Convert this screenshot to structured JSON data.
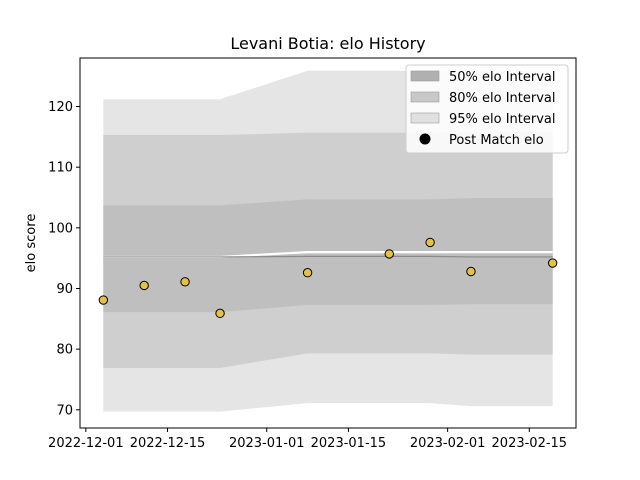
{
  "chart_data": {
    "type": "line",
    "title": "Levani Botia: elo History",
    "xlabel": "",
    "ylabel": "elo score",
    "xlim": [
      "2022-11-30",
      "2023-02-23"
    ],
    "ylim": [
      67,
      128
    ],
    "x_ticks": [
      "2022-12-01",
      "2022-12-15",
      "2023-01-01",
      "2023-01-15",
      "2023-02-01",
      "2023-02-15"
    ],
    "y_ticks": [
      70,
      80,
      90,
      100,
      110,
      120
    ],
    "dates": [
      "2022-12-04",
      "2022-12-11",
      "2022-12-18",
      "2022-12-24",
      "2023-01-08",
      "2023-01-22",
      "2023-01-29",
      "2023-02-05",
      "2023-02-19"
    ],
    "mean": [
      95.2,
      95.2,
      95.2,
      95.2,
      96.0,
      96.0,
      96.0,
      96.0,
      96.0
    ],
    "mean_secondary": [
      95.2,
      95.2,
      95.2,
      95.2,
      95.3,
      95.3,
      95.3,
      95.2,
      95.2
    ],
    "series": [
      {
        "name": "95% elo Interval",
        "color": "#e5e5e5",
        "lower": [
          69.7,
          69.7,
          69.7,
          69.7,
          71.1,
          71.1,
          71.1,
          70.6,
          70.6
        ],
        "upper": [
          121.2,
          121.2,
          121.2,
          121.2,
          125.9,
          125.9,
          125.9,
          125.9,
          125.9
        ]
      },
      {
        "name": "80% elo Interval",
        "color": "#cfcfcf",
        "lower": [
          76.9,
          76.9,
          76.9,
          76.9,
          79.3,
          79.3,
          79.3,
          79.1,
          79.1
        ],
        "upper": [
          115.3,
          115.3,
          115.3,
          115.3,
          115.7,
          115.7,
          115.7,
          115.8,
          115.8
        ]
      },
      {
        "name": "50% elo Interval",
        "color": "#bfbfbf",
        "lower": [
          86.1,
          86.1,
          86.1,
          86.1,
          87.3,
          87.3,
          87.3,
          87.4,
          87.4
        ],
        "upper": [
          103.7,
          103.7,
          103.7,
          103.7,
          104.7,
          104.7,
          104.7,
          104.9,
          104.9
        ]
      },
      {
        "name": "Post Match elo",
        "color": "#e6c23e",
        "x": [
          "2022-12-04",
          "2022-12-11",
          "2022-12-18",
          "2022-12-24",
          "2023-01-08",
          "2023-01-22",
          "2023-01-29",
          "2023-02-05",
          "2023-02-19"
        ],
        "values": [
          88.1,
          90.5,
          91.1,
          85.9,
          92.6,
          95.7,
          97.6,
          92.8,
          94.2
        ]
      }
    ],
    "legend": {
      "placement": "top-right",
      "entries": [
        "50% elo Interval",
        "80% elo Interval",
        "95% elo Interval",
        "Post Match elo"
      ]
    },
    "grid": false
  }
}
